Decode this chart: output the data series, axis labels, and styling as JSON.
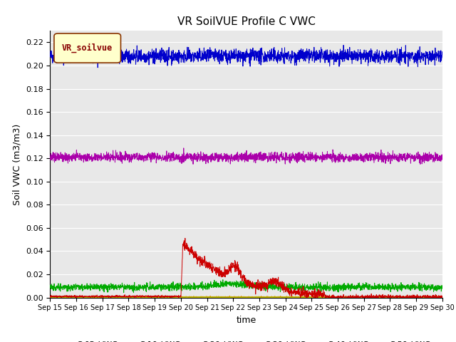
{
  "title": "VR SoilVUE Profile C VWC",
  "xlabel": "time",
  "ylabel": "Soil VWC (m3/m3)",
  "ylim": [
    0.0,
    0.23
  ],
  "yticks": [
    0.0,
    0.02,
    0.04,
    0.06,
    0.08,
    0.1,
    0.12,
    0.14,
    0.16,
    0.18,
    0.2,
    0.22
  ],
  "x_tick_labels": [
    "Sep 15",
    "Sep 16",
    "Sep 17",
    "Sep 18",
    "Sep 19",
    "Sep 20",
    "Sep 21",
    "Sep 22",
    "Sep 23",
    "Sep 24",
    "Sep 25",
    "Sep 26",
    "Sep 27",
    "Sep 28",
    "Sep 29",
    "Sep 30"
  ],
  "series_colors": {
    "C-05_VWC": "#cc0000",
    "C-10_VWC": "#dd8800",
    "C-20_VWC": "#bbbb00",
    "C-30_VWC": "#00aa00",
    "C-40_VWC": "#0000cc",
    "C-50_VWC": "#aa00aa"
  },
  "legend_label": "VR_soilvue",
  "legend_box_facecolor": "#ffffcc",
  "legend_box_edgecolor": "#883300",
  "plot_bg": "#e8e8e8",
  "grid_color": "#ffffff",
  "seed": 42,
  "n_points": 2160,
  "days": 15
}
